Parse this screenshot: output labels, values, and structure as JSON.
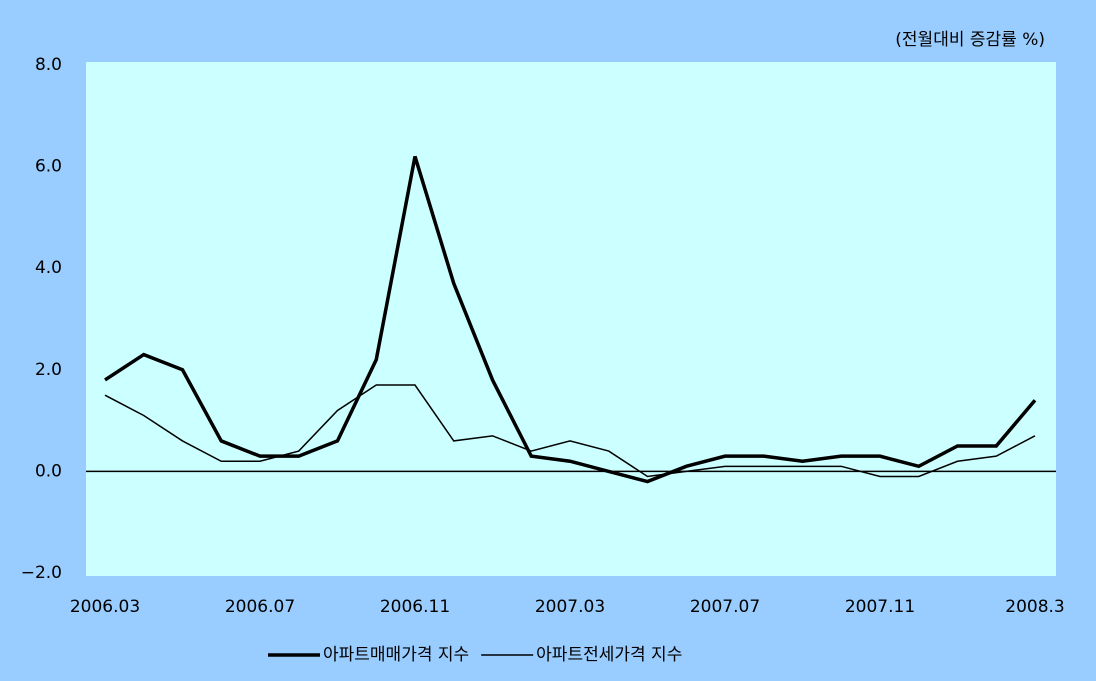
{
  "chart_data": {
    "type": "line",
    "annotation": "(전월대비 증감률 %)",
    "categories": [
      "2006.03",
      null,
      null,
      null,
      "2006.07",
      null,
      null,
      null,
      "2006.11",
      null,
      null,
      null,
      "2007.03",
      null,
      null,
      null,
      "2007.07",
      null,
      null,
      null,
      "2007.11",
      null,
      null,
      null,
      "2008.3"
    ],
    "series": [
      {
        "name": "아파트매매가격 지수",
        "color": "#000000",
        "width": 3.5,
        "values": [
          1.8,
          2.3,
          2.0,
          0.6,
          0.3,
          0.3,
          0.6,
          2.2,
          6.2,
          3.7,
          1.8,
          0.3,
          0.2,
          0.0,
          -0.2,
          0.1,
          0.3,
          0.3,
          0.2,
          0.3,
          0.3,
          0.1,
          0.5,
          0.5,
          1.4
        ]
      },
      {
        "name": "아파트전세가격 지수",
        "color": "#000000",
        "width": 1.5,
        "values": [
          1.5,
          1.1,
          0.6,
          0.2,
          0.2,
          0.4,
          1.2,
          1.7,
          1.7,
          0.6,
          0.7,
          0.4,
          0.6,
          0.4,
          -0.1,
          0.0,
          0.1,
          0.1,
          0.1,
          0.1,
          -0.1,
          -0.1,
          0.2,
          0.3,
          0.7
        ]
      }
    ],
    "ylim": [
      -2,
      8
    ],
    "yticks": [
      {
        "value": -2,
        "label": "−2.0"
      },
      {
        "value": 0,
        "label": "0.0"
      },
      {
        "value": 2,
        "label": "2.0"
      },
      {
        "value": 4,
        "label": "4.0"
      },
      {
        "value": 6,
        "label": "6.0"
      },
      {
        "value": 8,
        "label": "8.0"
      }
    ],
    "legend": "bottom"
  }
}
